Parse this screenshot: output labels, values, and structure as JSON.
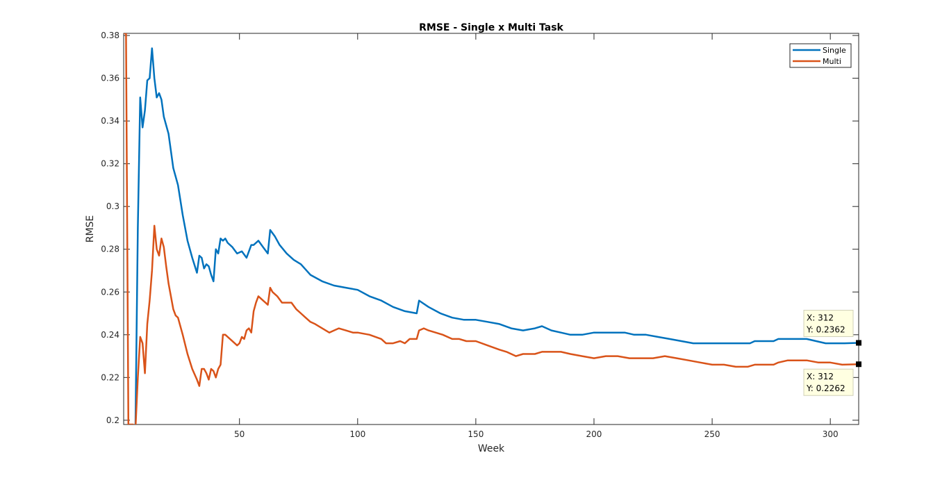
{
  "chart_data": {
    "type": "line",
    "title": "RMSE - Single x Multi Task",
    "xlabel": "Week",
    "ylabel": "RMSE",
    "xlim": [
      1,
      312
    ],
    "ylim": [
      0.198,
      0.381
    ],
    "xticks": [
      "50",
      "100",
      "150",
      "200",
      "250",
      "300"
    ],
    "yticks": [
      "0.2",
      "0.22",
      "0.24",
      "0.26",
      "0.28",
      "0.3",
      "0.32",
      "0.34",
      "0.36",
      "0.38"
    ],
    "grid": false,
    "legend_position": "top-right",
    "series": [
      {
        "name": "Single",
        "color": "#0072BD",
        "x": [
          6,
          7,
          8,
          9,
          10,
          11,
          12,
          13,
          14,
          15,
          16,
          17,
          18,
          20,
          22,
          24,
          26,
          28,
          30,
          32,
          33,
          34,
          35,
          36,
          37,
          38,
          39,
          40,
          41,
          42,
          43,
          44,
          45,
          47,
          49,
          51,
          53,
          55,
          56,
          58,
          60,
          62,
          63,
          65,
          67,
          70,
          73,
          76,
          80,
          85,
          90,
          95,
          100,
          105,
          110,
          115,
          120,
          125,
          126,
          130,
          135,
          140,
          145,
          150,
          155,
          160,
          165,
          170,
          175,
          178,
          182,
          186,
          190,
          195,
          200,
          205,
          210,
          213,
          217,
          222,
          227,
          232,
          237,
          242,
          247,
          252,
          257,
          262,
          266,
          268,
          272,
          276,
          278,
          282,
          286,
          290,
          294,
          298,
          302,
          306,
          312
        ],
        "y": [
          0.198,
          0.29,
          0.351,
          0.337,
          0.345,
          0.359,
          0.36,
          0.374,
          0.36,
          0.351,
          0.353,
          0.35,
          0.342,
          0.334,
          0.318,
          0.31,
          0.296,
          0.284,
          0.276,
          0.269,
          0.277,
          0.276,
          0.271,
          0.273,
          0.272,
          0.268,
          0.265,
          0.28,
          0.278,
          0.285,
          0.284,
          0.285,
          0.283,
          0.281,
          0.278,
          0.279,
          0.276,
          0.282,
          0.282,
          0.284,
          0.281,
          0.278,
          0.289,
          0.286,
          0.282,
          0.278,
          0.275,
          0.273,
          0.268,
          0.265,
          0.263,
          0.262,
          0.261,
          0.258,
          0.256,
          0.253,
          0.251,
          0.25,
          0.256,
          0.253,
          0.25,
          0.248,
          0.247,
          0.247,
          0.246,
          0.245,
          0.243,
          0.242,
          0.243,
          0.244,
          0.242,
          0.241,
          0.24,
          0.24,
          0.241,
          0.241,
          0.241,
          0.241,
          0.24,
          0.24,
          0.239,
          0.238,
          0.237,
          0.236,
          0.236,
          0.236,
          0.236,
          0.236,
          0.236,
          0.237,
          0.237,
          0.237,
          0.238,
          0.238,
          0.238,
          0.238,
          0.237,
          0.236,
          0.236,
          0.236,
          0.2362
        ]
      },
      {
        "name": "Multi",
        "color": "#D95319",
        "x": [
          1,
          2,
          3,
          4,
          5,
          6,
          7,
          8,
          9,
          10,
          11,
          12,
          13,
          14,
          15,
          16,
          17,
          18,
          19,
          20,
          21,
          22,
          23,
          24,
          26,
          28,
          30,
          32,
          33,
          34,
          35,
          36,
          37,
          38,
          39,
          40,
          41,
          42,
          43,
          44,
          46,
          48,
          49,
          50,
          51,
          52,
          53,
          54,
          55,
          56,
          57,
          58,
          60,
          61,
          62,
          63,
          64,
          66,
          68,
          70,
          72,
          74,
          76,
          78,
          80,
          82,
          85,
          88,
          90,
          92,
          95,
          98,
          100,
          105,
          110,
          112,
          115,
          118,
          120,
          122,
          125,
          126,
          128,
          130,
          133,
          136,
          140,
          143,
          146,
          150,
          155,
          160,
          163,
          165,
          167,
          170,
          175,
          178,
          182,
          186,
          190,
          195,
          200,
          205,
          210,
          215,
          220,
          225,
          230,
          235,
          240,
          245,
          250,
          255,
          260,
          265,
          268,
          272,
          276,
          278,
          282,
          286,
          290,
          295,
          300,
          305,
          312
        ],
        "y": [
          0.381,
          0.381,
          0.198,
          0.198,
          0.198,
          0.196,
          0.22,
          0.239,
          0.236,
          0.222,
          0.245,
          0.256,
          0.27,
          0.291,
          0.28,
          0.277,
          0.285,
          0.281,
          0.272,
          0.264,
          0.258,
          0.252,
          0.249,
          0.248,
          0.24,
          0.231,
          0.224,
          0.219,
          0.216,
          0.224,
          0.224,
          0.222,
          0.219,
          0.224,
          0.223,
          0.22,
          0.224,
          0.226,
          0.24,
          0.24,
          0.238,
          0.236,
          0.235,
          0.236,
          0.239,
          0.238,
          0.242,
          0.243,
          0.241,
          0.251,
          0.255,
          0.258,
          0.256,
          0.255,
          0.254,
          0.262,
          0.26,
          0.258,
          0.255,
          0.255,
          0.255,
          0.252,
          0.25,
          0.248,
          0.246,
          0.245,
          0.243,
          0.241,
          0.242,
          0.243,
          0.242,
          0.241,
          0.241,
          0.24,
          0.238,
          0.236,
          0.236,
          0.237,
          0.236,
          0.238,
          0.238,
          0.242,
          0.243,
          0.242,
          0.241,
          0.24,
          0.238,
          0.238,
          0.237,
          0.237,
          0.235,
          0.233,
          0.232,
          0.231,
          0.23,
          0.231,
          0.231,
          0.232,
          0.232,
          0.232,
          0.231,
          0.23,
          0.229,
          0.23,
          0.23,
          0.229,
          0.229,
          0.229,
          0.23,
          0.229,
          0.228,
          0.227,
          0.226,
          0.226,
          0.225,
          0.225,
          0.226,
          0.226,
          0.226,
          0.227,
          0.228,
          0.228,
          0.228,
          0.227,
          0.227,
          0.226,
          0.2262
        ]
      }
    ],
    "data_tips": [
      {
        "x_label": "X: 312",
        "y_label": "Y: 0.2362",
        "x": 312,
        "y": 0.2362,
        "placement": "above"
      },
      {
        "x_label": "X: 312",
        "y_label": "Y: 0.2262",
        "x": 312,
        "y": 0.2262,
        "placement": "below"
      }
    ]
  }
}
